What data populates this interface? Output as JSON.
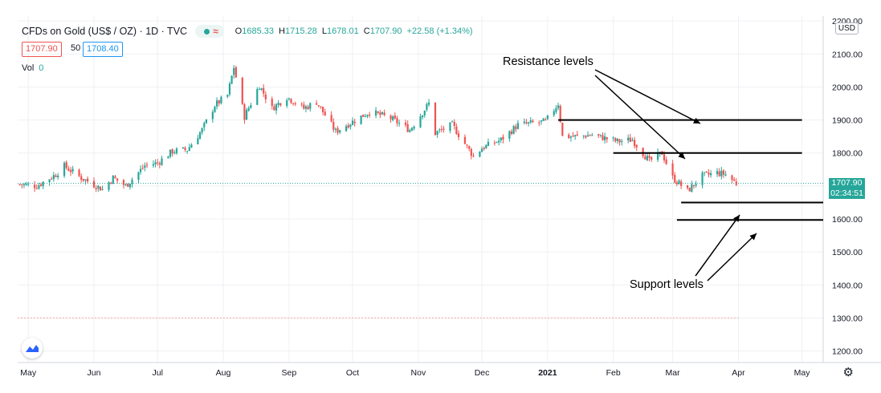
{
  "header": {
    "symbol": "CFDs on Gold (US$ / OZ) · 1D · TVC",
    "wave_glyph": "≈",
    "open_label": "O",
    "open": "1685.33",
    "high_label": "H",
    "high": "1715.28",
    "low_label": "L",
    "low": "1678.01",
    "close_label": "C",
    "close": "1707.90",
    "change": "+22.58 (+1.34%)"
  },
  "quote": {
    "bid": "1707.90",
    "spread": "50",
    "ask": "1708.40"
  },
  "volume": {
    "label": "Vol",
    "value": "0"
  },
  "currency": "USD",
  "price_tag": {
    "price": "1707.90",
    "countdown": "02:34:51"
  },
  "annotations": {
    "resistance": "Resistance levels",
    "support": "Support levels"
  },
  "colors": {
    "up": "#26a69a",
    "down": "#ef5350",
    "grid": "#eef0f3",
    "accent": "#26a69a"
  },
  "chart_data": {
    "type": "candlestick",
    "title": "",
    "y_ticks": [
      1200,
      1300,
      1400,
      1500,
      1600,
      1700,
      1800,
      1900,
      2000,
      2100,
      2200
    ],
    "ylim": [
      1165,
      2215
    ],
    "x_ticks": [
      "May",
      "Jun",
      "Jul",
      "Aug",
      "Sep",
      "Oct",
      "Nov",
      "Dec",
      "2021",
      "Feb",
      "Mar",
      "Apr",
      "May"
    ],
    "x_tick_dates": [
      "2020-05-01",
      "2020-06-01",
      "2020-07-01",
      "2020-08-01",
      "2020-09-01",
      "2020-10-01",
      "2020-11-01",
      "2020-12-01",
      "2021-01-01",
      "2021-02-01",
      "2021-03-01",
      "2021-04-01",
      "2021-05-01"
    ],
    "xlim": [
      "2020-04-26",
      "2021-05-11"
    ],
    "price_line": 1707.9,
    "dotted_line": 1300,
    "close_path": [
      [
        "2020-04-27",
        1705
      ],
      [
        "2020-05-05",
        1700
      ],
      [
        "2020-05-14",
        1735
      ],
      [
        "2020-05-18",
        1760
      ],
      [
        "2020-05-26",
        1725
      ],
      [
        "2020-06-05",
        1690
      ],
      [
        "2020-06-10",
        1725
      ],
      [
        "2020-06-16",
        1700
      ],
      [
        "2020-06-25",
        1762
      ],
      [
        "2020-07-01",
        1770
      ],
      [
        "2020-07-08",
        1805
      ],
      [
        "2020-07-15",
        1810
      ],
      [
        "2020-07-22",
        1870
      ],
      [
        "2020-07-28",
        1945
      ],
      [
        "2020-08-03",
        1975
      ],
      [
        "2020-08-06",
        2060
      ],
      [
        "2020-08-11",
        1910
      ],
      [
        "2020-08-18",
        2005
      ],
      [
        "2020-08-24",
        1935
      ],
      [
        "2020-08-31",
        1970
      ],
      [
        "2020-09-08",
        1935
      ],
      [
        "2020-09-14",
        1955
      ],
      [
        "2020-09-23",
        1865
      ],
      [
        "2020-10-01",
        1895
      ],
      [
        "2020-10-09",
        1925
      ],
      [
        "2020-10-19",
        1905
      ],
      [
        "2020-10-28",
        1870
      ],
      [
        "2020-11-06",
        1950
      ],
      [
        "2020-11-09",
        1860
      ],
      [
        "2020-11-17",
        1885
      ],
      [
        "2020-11-27",
        1790
      ],
      [
        "2020-12-01",
        1815
      ],
      [
        "2020-12-10",
        1840
      ],
      [
        "2020-12-18",
        1885
      ],
      [
        "2020-12-31",
        1895
      ],
      [
        "2021-01-06",
        1950
      ],
      [
        "2021-01-08",
        1850
      ],
      [
        "2021-01-14",
        1850
      ],
      [
        "2021-01-22",
        1855
      ],
      [
        "2021-01-28",
        1845
      ],
      [
        "2021-02-03",
        1835
      ],
      [
        "2021-02-10",
        1840
      ],
      [
        "2021-02-18",
        1775
      ],
      [
        "2021-02-24",
        1800
      ],
      [
        "2021-03-01",
        1725
      ],
      [
        "2021-03-08",
        1685
      ],
      [
        "2021-03-15",
        1730
      ],
      [
        "2021-03-22",
        1740
      ],
      [
        "2021-03-26",
        1735
      ],
      [
        "2021-03-31",
        1708
      ]
    ],
    "levels": [
      {
        "name": "resistance",
        "value": 1900,
        "from": "2021-01-06",
        "to": "2021-05-01"
      },
      {
        "name": "resistance",
        "value": 1800,
        "from": "2021-02-01",
        "to": "2021-05-01"
      },
      {
        "name": "support",
        "value": 1650,
        "from": "2021-03-05",
        "to": "2021-05-11"
      },
      {
        "name": "support",
        "value": 1597,
        "from": "2021-03-03",
        "to": "2021-05-11"
      }
    ]
  }
}
